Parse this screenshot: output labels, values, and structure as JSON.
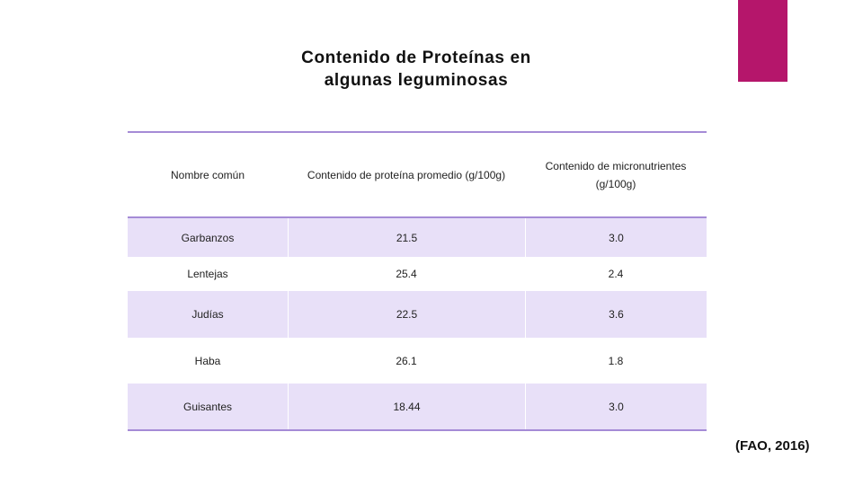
{
  "slide": {
    "title_lines": [
      "Contenido de Proteínas en",
      "algunas leguminosas"
    ],
    "table": {
      "header": [
        "Nombre común",
        "Contenido de proteína promedio (g/100g)",
        "Contenido de micronutrientes (g/100g)"
      ],
      "rows": [
        [
          "Garbanzos",
          "21.5",
          "3.0"
        ],
        [
          "Lentejas",
          "25.4",
          "2.4"
        ],
        [
          "Judías",
          "22.5",
          "3.6"
        ],
        [
          "Haba",
          "26.1",
          "1.8"
        ],
        [
          "Guisantes",
          "18.44",
          "3.0"
        ]
      ]
    },
    "citation": "(FAO, 2016)"
  }
}
